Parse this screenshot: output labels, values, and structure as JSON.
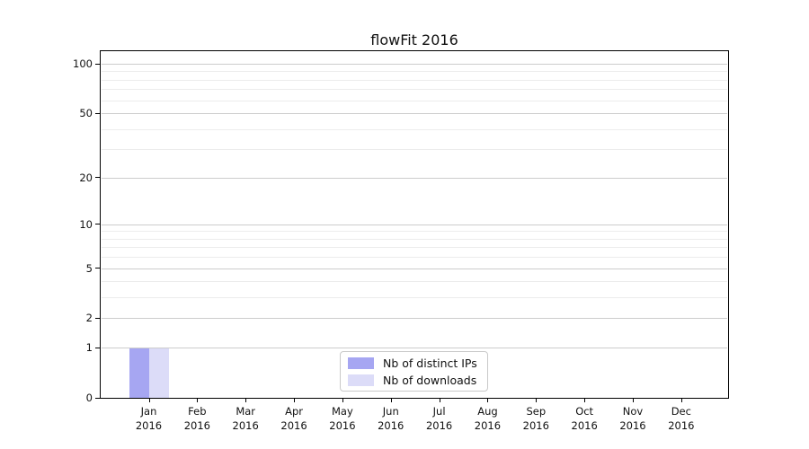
{
  "chart_data": {
    "type": "bar",
    "title": "flowFit 2016",
    "categories": [
      "Jan",
      "Feb",
      "Mar",
      "Apr",
      "May",
      "Jun",
      "Jul",
      "Aug",
      "Sep",
      "Oct",
      "Nov",
      "Dec"
    ],
    "x_year_label": "2016",
    "series": [
      {
        "name": "Nb of distinct IPs",
        "color": "#a6a6f2",
        "values": [
          1,
          0,
          0,
          0,
          0,
          0,
          0,
          0,
          0,
          0,
          0,
          0
        ]
      },
      {
        "name": "Nb of downloads",
        "color": "#dcdcf8",
        "values": [
          1,
          0,
          0,
          0,
          0,
          0,
          0,
          0,
          0,
          0,
          0,
          0
        ]
      }
    ],
    "y_axis": {
      "scale": "log10(1+y)",
      "tick_values": [
        0,
        1,
        2,
        5,
        10,
        20,
        50,
        100
      ],
      "minor_gridline_values": [
        3,
        4,
        6,
        7,
        8,
        9,
        30,
        40,
        60,
        70,
        80,
        90
      ]
    },
    "grid": "horizontal",
    "legend_position": "inside-bottom-center",
    "colors": {
      "major_gridline": "#cccccc",
      "minor_gridline": "#ececec",
      "axis": "#000000",
      "legend_border": "#c9c9c9",
      "background": "#ffffff",
      "text": "#111111"
    }
  }
}
